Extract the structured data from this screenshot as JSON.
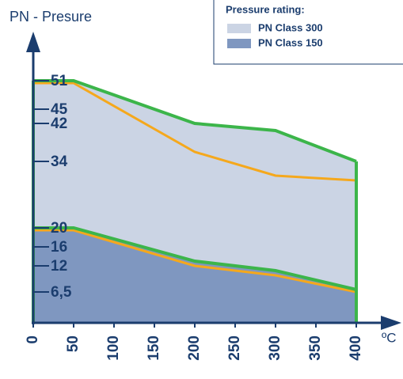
{
  "chart_data": {
    "type": "area",
    "y_label": "PN - Presure",
    "x_label": "ºC",
    "legend_title": "Pressure rating:",
    "x": [
      0,
      50,
      200,
      300,
      400
    ],
    "series": [
      {
        "name": "PN Class 300",
        "color": "#cbd4e4",
        "edge_color": "#3cb54a",
        "values": [
          51,
          51,
          42,
          40.5,
          34
        ]
      },
      {
        "name": "PN Class 150",
        "color": "#7f97c0",
        "edge_color": "#3cb54a",
        "values": [
          20,
          20,
          13,
          11,
          7
        ]
      }
    ],
    "limit_lines": [
      {
        "color": "#f5a81c",
        "values": [
          50.5,
          50.5,
          36,
          31,
          30
        ]
      },
      {
        "color": "#f5a81c",
        "values": [
          19.5,
          19.5,
          12,
          10,
          6.5
        ]
      }
    ],
    "xlim": [
      0,
      400
    ],
    "xticks": [
      0,
      50,
      100,
      150,
      200,
      250,
      300,
      350,
      400
    ],
    "ylim": [
      0,
      51
    ],
    "yticks": [
      {
        "value": 6.5,
        "label": "6,5"
      },
      12,
      16,
      20,
      34,
      42,
      45,
      51
    ]
  }
}
